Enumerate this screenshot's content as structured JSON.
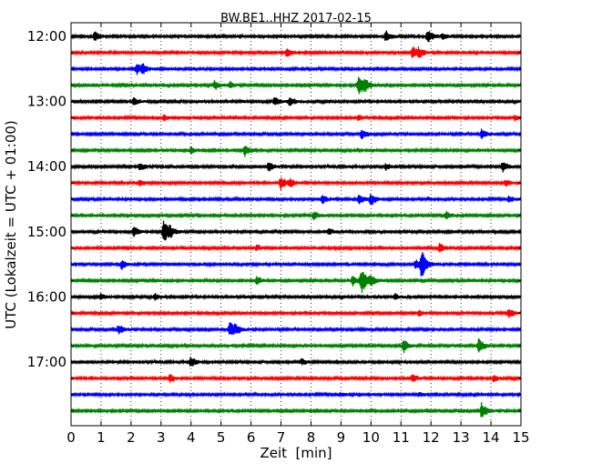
{
  "chart_data": {
    "type": "line",
    "title": "BW.BE1..HHZ 2017-02-15",
    "xlabel": "Zeit  [min]",
    "ylabel": "UTC (Lokalzeit = UTC + 01:00)",
    "xlim": [
      0,
      15
    ],
    "x_ticks": [
      0,
      1,
      2,
      3,
      4,
      5,
      6,
      7,
      8,
      9,
      10,
      11,
      12,
      13,
      14,
      15
    ],
    "y_tick_labels": [
      "12:00",
      "13:00",
      "14:00",
      "15:00",
      "16:00",
      "17:00"
    ],
    "grid": "vertical dotted",
    "colors": [
      "#000000",
      "#ff0000",
      "#0000ff",
      "#008000"
    ],
    "series": [
      {
        "time": "12:00",
        "events": [
          [
            0.8,
            0.5
          ],
          [
            10.5,
            0.6
          ],
          [
            11.9,
            0.7
          ],
          [
            12.4,
            0.35
          ]
        ]
      },
      {
        "time": "12:15",
        "events": [
          [
            7.2,
            0.5
          ],
          [
            11.4,
            0.7
          ],
          [
            11.6,
            0.45
          ]
        ]
      },
      {
        "time": "12:30",
        "events": [
          [
            2.2,
            0.7
          ],
          [
            2.4,
            0.4
          ]
        ]
      },
      {
        "time": "12:45",
        "events": [
          [
            4.8,
            0.5
          ],
          [
            5.3,
            0.35
          ],
          [
            9.6,
            1.3
          ],
          [
            9.8,
            0.5
          ]
        ]
      },
      {
        "time": "13:00",
        "events": [
          [
            2.1,
            0.4
          ],
          [
            6.8,
            0.45
          ],
          [
            7.3,
            0.5
          ]
        ]
      },
      {
        "time": "13:15",
        "events": [
          [
            3.1,
            0.3
          ],
          [
            9.6,
            0.3
          ],
          [
            14.8,
            0.3
          ]
        ]
      },
      {
        "time": "13:30",
        "events": [
          [
            9.7,
            0.5
          ],
          [
            13.7,
            0.55
          ]
        ]
      },
      {
        "time": "13:45",
        "events": [
          [
            4.0,
            0.35
          ],
          [
            5.8,
            0.6
          ]
        ]
      },
      {
        "time": "14:00",
        "events": [
          [
            2.3,
            0.45
          ],
          [
            6.6,
            0.5
          ],
          [
            10.5,
            0.35
          ],
          [
            14.4,
            0.55
          ]
        ]
      },
      {
        "time": "14:15",
        "events": [
          [
            2.3,
            0.35
          ],
          [
            7.0,
            0.7
          ],
          [
            7.3,
            0.45
          ],
          [
            14.5,
            0.35
          ]
        ]
      },
      {
        "time": "14:30",
        "events": [
          [
            8.4,
            0.45
          ],
          [
            9.6,
            0.55
          ],
          [
            10.0,
            0.6
          ],
          [
            14.6,
            0.35
          ]
        ]
      },
      {
        "time": "14:45",
        "events": [
          [
            8.1,
            0.45
          ],
          [
            12.5,
            0.45
          ]
        ]
      },
      {
        "time": "15:00",
        "events": [
          [
            2.1,
            0.55
          ],
          [
            3.1,
            1.3
          ],
          [
            3.3,
            0.4
          ],
          [
            8.6,
            0.35
          ]
        ]
      },
      {
        "time": "15:15",
        "events": [
          [
            6.2,
            0.3
          ],
          [
            12.3,
            0.5
          ]
        ]
      },
      {
        "time": "15:30",
        "events": [
          [
            1.7,
            0.5
          ],
          [
            11.7,
            1.4
          ],
          [
            11.5,
            0.5
          ]
        ]
      },
      {
        "time": "15:45",
        "events": [
          [
            6.2,
            0.45
          ],
          [
            9.4,
            0.55
          ],
          [
            9.7,
            1.35
          ],
          [
            10.0,
            0.5
          ]
        ]
      },
      {
        "time": "16:00",
        "events": [
          [
            1.0,
            0.3
          ],
          [
            2.8,
            0.3
          ],
          [
            10.8,
            0.35
          ]
        ]
      },
      {
        "time": "16:15",
        "events": [
          [
            11.6,
            0.3
          ],
          [
            14.6,
            0.55
          ]
        ]
      },
      {
        "time": "16:30",
        "events": [
          [
            1.6,
            0.55
          ],
          [
            5.3,
            0.9
          ],
          [
            5.5,
            0.4
          ]
        ]
      },
      {
        "time": "16:45",
        "events": [
          [
            11.1,
            0.75
          ],
          [
            13.6,
            0.8
          ]
        ]
      },
      {
        "time": "17:00",
        "events": [
          [
            4.0,
            0.55
          ],
          [
            7.7,
            0.35
          ]
        ]
      },
      {
        "time": "17:15",
        "events": [
          [
            3.3,
            0.45
          ],
          [
            11.4,
            0.45
          ],
          [
            14.1,
            0.35
          ]
        ]
      },
      {
        "time": "17:30",
        "events": [
          [
            9.0,
            0.2
          ],
          [
            11.6,
            0.25
          ]
        ]
      },
      {
        "time": "17:45",
        "events": [
          [
            13.7,
            0.9
          ]
        ]
      }
    ]
  }
}
